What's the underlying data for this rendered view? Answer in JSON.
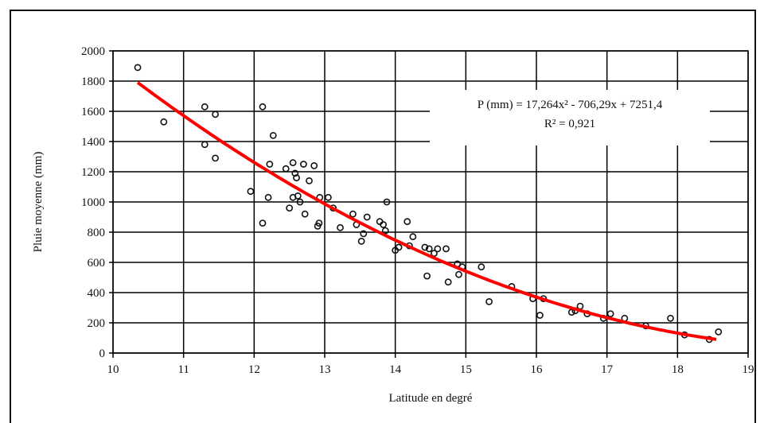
{
  "chart_data": {
    "type": "scatter",
    "xlabel": "Latitude en degré",
    "ylabel": "Pluie moyenne (mm)",
    "xlim": [
      10,
      19
    ],
    "ylim": [
      0,
      2000
    ],
    "xticks": [
      "10",
      "11",
      "12",
      "13",
      "14",
      "15",
      "16",
      "17",
      "18",
      "19"
    ],
    "yticks": [
      "0",
      "200",
      "400",
      "600",
      "800",
      "1000",
      "1200",
      "1400",
      "1600",
      "1800",
      "2000"
    ],
    "grid": true,
    "colors": {
      "trend": "#ff0000",
      "points": "#111111",
      "grid": "#000000"
    },
    "equation": {
      "line1": "P (mm)  = 17,264x² - 706,29x + 7251,4",
      "line2": "R² = 0,921",
      "coefficients": [
        17.264,
        -706.29,
        7251.4
      ],
      "r2": 0.921
    },
    "trend_range": [
      10.35,
      18.55
    ],
    "points": [
      [
        10.35,
        1890
      ],
      [
        10.72,
        1530
      ],
      [
        11.3,
        1630
      ],
      [
        11.3,
        1380
      ],
      [
        11.45,
        1580
      ],
      [
        11.45,
        1290
      ],
      [
        11.95,
        1070
      ],
      [
        12.12,
        1630
      ],
      [
        12.12,
        860
      ],
      [
        12.2,
        1030
      ],
      [
        12.22,
        1250
      ],
      [
        12.27,
        1440
      ],
      [
        12.45,
        1220
      ],
      [
        12.5,
        960
      ],
      [
        12.55,
        1260
      ],
      [
        12.55,
        1030
      ],
      [
        12.58,
        1190
      ],
      [
        12.6,
        1160
      ],
      [
        12.62,
        1040
      ],
      [
        12.65,
        1000
      ],
      [
        12.7,
        1250
      ],
      [
        12.72,
        920
      ],
      [
        12.78,
        1140
      ],
      [
        12.85,
        1240
      ],
      [
        12.9,
        840
      ],
      [
        12.92,
        860
      ],
      [
        12.93,
        1030
      ],
      [
        13.05,
        1030
      ],
      [
        13.12,
        960
      ],
      [
        13.22,
        830
      ],
      [
        13.4,
        920
      ],
      [
        13.45,
        850
      ],
      [
        13.52,
        740
      ],
      [
        13.55,
        790
      ],
      [
        13.6,
        900
      ],
      [
        13.78,
        870
      ],
      [
        13.83,
        850
      ],
      [
        13.86,
        810
      ],
      [
        13.88,
        1000
      ],
      [
        14.0,
        680
      ],
      [
        14.05,
        700
      ],
      [
        14.17,
        870
      ],
      [
        14.2,
        710
      ],
      [
        14.25,
        770
      ],
      [
        14.42,
        700
      ],
      [
        14.45,
        510
      ],
      [
        14.48,
        690
      ],
      [
        14.55,
        660
      ],
      [
        14.6,
        690
      ],
      [
        14.72,
        690
      ],
      [
        14.75,
        470
      ],
      [
        14.88,
        590
      ],
      [
        14.9,
        520
      ],
      [
        14.95,
        570
      ],
      [
        15.22,
        570
      ],
      [
        15.33,
        340
      ],
      [
        15.65,
        440
      ],
      [
        15.95,
        360
      ],
      [
        16.05,
        250
      ],
      [
        16.1,
        360
      ],
      [
        16.5,
        270
      ],
      [
        16.55,
        280
      ],
      [
        16.62,
        310
      ],
      [
        16.72,
        260
      ],
      [
        16.95,
        230
      ],
      [
        17.05,
        260
      ],
      [
        17.25,
        230
      ],
      [
        17.55,
        180
      ],
      [
        17.9,
        230
      ],
      [
        18.1,
        120
      ],
      [
        18.45,
        90
      ],
      [
        18.58,
        140
      ]
    ]
  }
}
